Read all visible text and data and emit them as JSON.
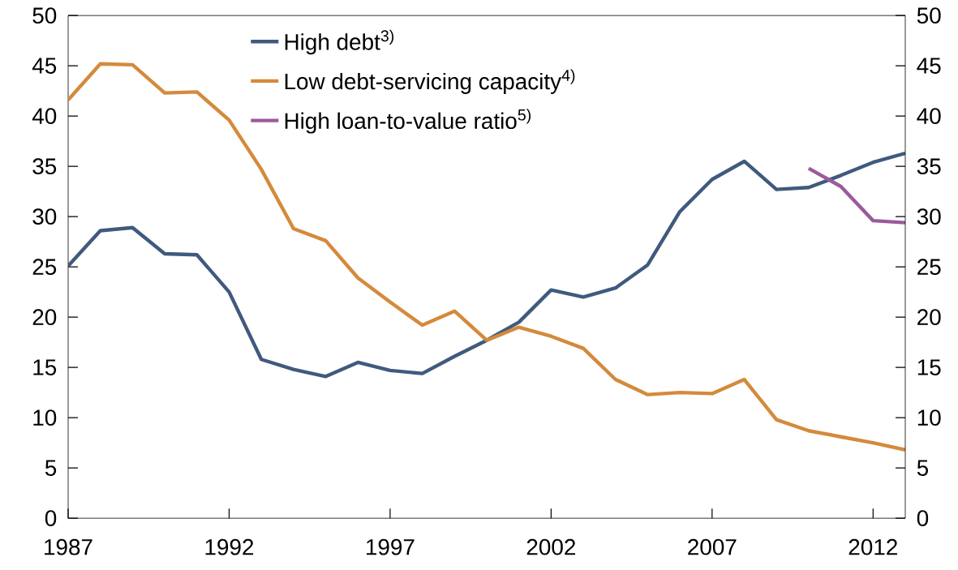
{
  "chart_data": {
    "type": "line",
    "x": [
      1987,
      1988,
      1989,
      1990,
      1991,
      1992,
      1993,
      1994,
      1995,
      1996,
      1997,
      1998,
      1999,
      2000,
      2001,
      2002,
      2003,
      2004,
      2005,
      2006,
      2007,
      2008,
      2009,
      2010,
      2011,
      2012,
      2013
    ],
    "series": [
      {
        "name": "High debt$^{3)}$",
        "color": "#405a7e",
        "values": [
          25.1,
          28.6,
          28.9,
          26.3,
          26.2,
          22.5,
          15.8,
          14.8,
          14.1,
          15.5,
          14.7,
          14.4,
          16.1,
          17.7,
          19.5,
          22.7,
          22.0,
          22.9,
          25.2,
          30.5,
          33.7,
          35.5,
          32.7,
          32.9,
          34.1,
          35.4,
          36.3
        ]
      },
      {
        "name": "Low debt-servicing capacity$^{4)}$",
        "color": "#d48a3c",
        "values": [
          41.6,
          45.2,
          45.1,
          42.3,
          42.4,
          39.6,
          34.7,
          28.8,
          27.6,
          23.9,
          21.5,
          19.2,
          20.6,
          17.7,
          19.0,
          18.1,
          16.9,
          13.8,
          12.3,
          12.5,
          12.4,
          13.8,
          9.8,
          8.7,
          8.1,
          7.5,
          6.8
        ]
      },
      {
        "name": "High loan-to-value ratio$^{5)}$",
        "color": "#9b5a9c",
        "values": [
          null,
          null,
          null,
          null,
          null,
          null,
          null,
          null,
          null,
          null,
          null,
          null,
          null,
          null,
          null,
          null,
          null,
          null,
          null,
          null,
          null,
          null,
          null,
          34.8,
          33.0,
          29.6,
          29.4
        ]
      }
    ],
    "xlim": [
      1987,
      2013
    ],
    "xticks": [
      1987,
      1992,
      1997,
      2002,
      2007,
      2012
    ],
    "ylim": [
      0,
      50
    ],
    "yticks": [
      0,
      5,
      10,
      15,
      20,
      25,
      30,
      35,
      40,
      45,
      50
    ],
    "y2lim": [
      0,
      50
    ],
    "y2ticks": [
      0,
      5,
      10,
      15,
      20,
      25,
      30,
      35,
      40,
      45,
      50
    ],
    "legend": "top",
    "grid": false,
    "line_style": "solid",
    "marker": "none"
  }
}
